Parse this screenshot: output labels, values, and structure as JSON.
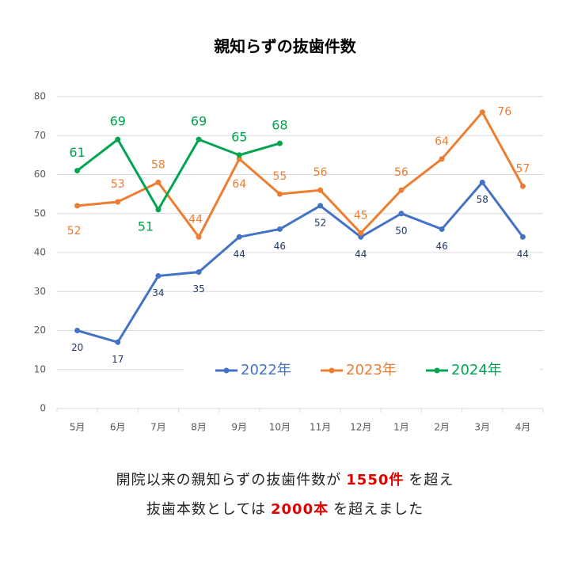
{
  "chart_data": {
    "type": "line",
    "title": "親知らずの抜歯件数",
    "categories": [
      "5月",
      "6月",
      "7月",
      "8月",
      "9月",
      "10月",
      "11月",
      "12月",
      "1月",
      "2月",
      "3月",
      "4月"
    ],
    "series": [
      {
        "name": "2022年",
        "color": "#4472c4",
        "label_color": "#1f3864",
        "values": [
          20,
          17,
          34,
          35,
          44,
          46,
          52,
          44,
          50,
          46,
          58,
          44
        ]
      },
      {
        "name": "2023年",
        "color": "#ed7d31",
        "label_color": "#ed7d31",
        "values": [
          52,
          53,
          58,
          44,
          64,
          55,
          56,
          45,
          56,
          64,
          76,
          57
        ]
      },
      {
        "name": "2024年",
        "color": "#00a550",
        "label_color": "#00a550",
        "values": [
          61,
          69,
          51,
          69,
          65,
          68,
          null,
          null,
          null,
          null,
          null,
          null
        ]
      }
    ],
    "ylim": [
      0,
      80
    ],
    "yticks": [
      0,
      10,
      20,
      30,
      40,
      50,
      60,
      70,
      80
    ],
    "grid": true,
    "legend": "bottom-right"
  },
  "caption": {
    "lines": [
      {
        "before": "開院以来の親知らずの抜歯件数が",
        "highlight": "1550件",
        "after": "を超え"
      },
      {
        "before": "抜歯本数としては",
        "highlight": "2000本",
        "after": "を超えました"
      }
    ]
  }
}
